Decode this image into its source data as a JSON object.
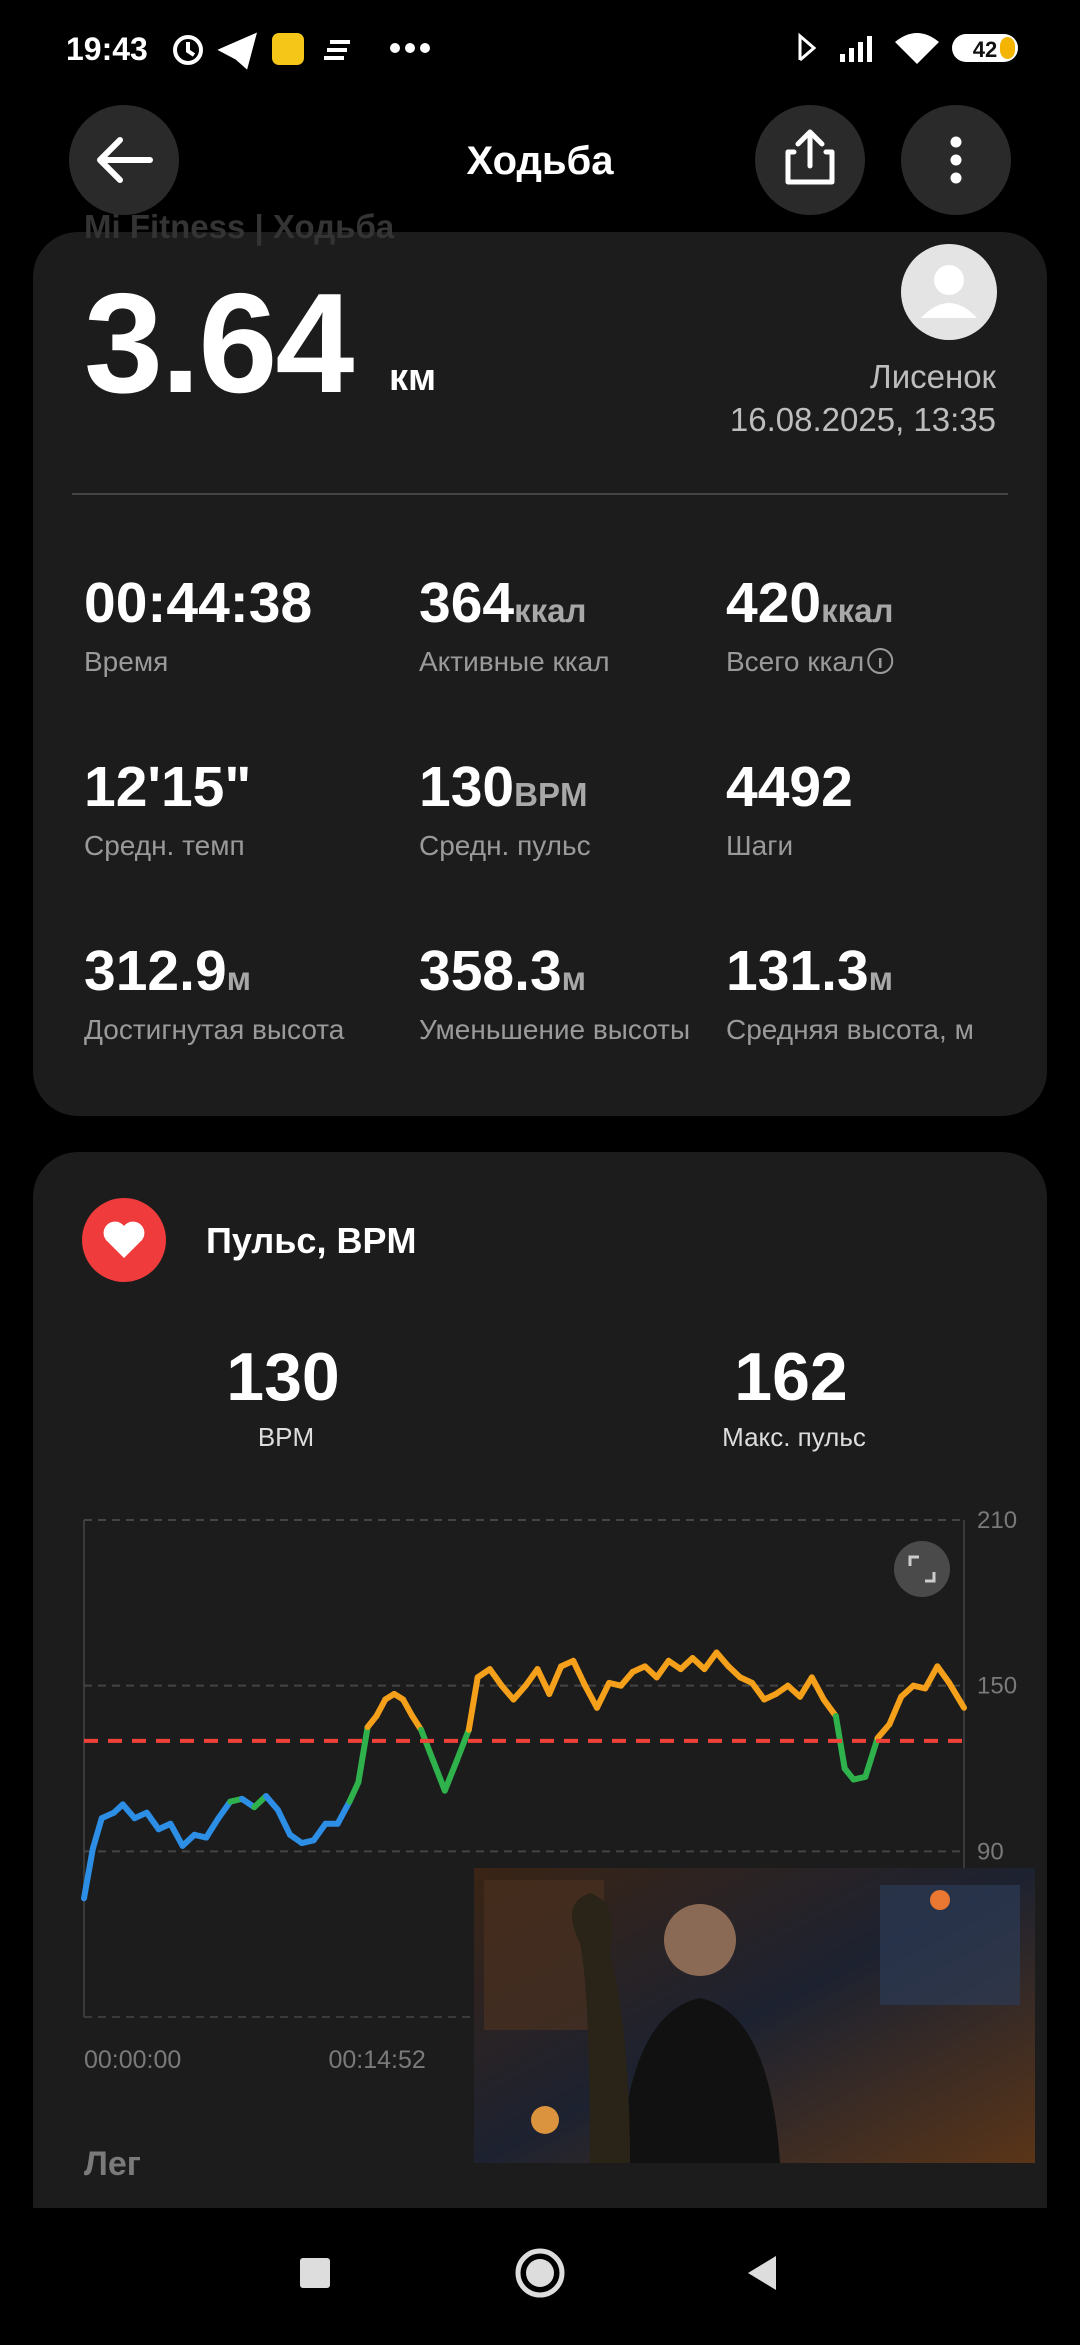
{
  "status_bar": {
    "time": "19:43",
    "battery": "42"
  },
  "header": {
    "title": "Ходьба",
    "background_text": "Mi Fitness | Ходьба"
  },
  "summary": {
    "distance": "3.64",
    "unit": "км",
    "user": "Лисенок",
    "date": "16.08.2025, 13:35"
  },
  "stats": [
    {
      "value": "00:44:38",
      "label": "Время"
    },
    {
      "value": "364",
      "unit": "ккал",
      "label": "Активные ккал"
    },
    {
      "value": "420",
      "unit": "ккал",
      "label": "Всего ккал"
    },
    {
      "value": "12'15\"",
      "label": "Средн. темп"
    },
    {
      "value": "130",
      "unit": "BPM",
      "label": "Средн. пульс"
    },
    {
      "value": "4492",
      "label": "Шаги"
    },
    {
      "value": "312.9",
      "unit": "м",
      "label": "Достигнутая высота"
    },
    {
      "value": "358.3",
      "unit": "м",
      "label": "Уменьшение высоты"
    },
    {
      "value": "131.3",
      "unit": "м",
      "label": "Средняя высота, м"
    }
  ],
  "heart_rate": {
    "title": "Пульс, BPM",
    "average": "130",
    "average_label": "BPM",
    "max": "162",
    "max_label": "Макс. пульс",
    "legend_title": "Лег"
  },
  "chart_data": {
    "type": "line",
    "x": [
      0,
      27,
      54,
      91,
      118,
      154,
      191,
      227,
      263,
      300,
      336,
      372,
      409,
      445,
      481,
      518,
      554,
      590,
      627,
      663,
      699,
      735,
      772,
      808,
      835,
      863,
      890,
      917,
      944,
      971,
      999,
      1026,
      1062,
      1098,
      1135,
      1171,
      1198,
      1235,
      1271,
      1307,
      1344,
      1380,
      1416,
      1452,
      1489,
      1525,
      1561,
      1598,
      1634,
      1670,
      1707,
      1743,
      1779,
      1816,
      1852,
      1888,
      1925,
      1961,
      1997,
      2033,
      2070,
      2106,
      2142,
      2179,
      2215,
      2251,
      2288,
      2315,
      2342,
      2378,
      2415,
      2451,
      2487,
      2524,
      2560,
      2597,
      2633,
      2678
    ],
    "values": [
      73,
      91,
      102,
      104,
      107,
      102,
      104,
      98,
      100,
      92,
      96,
      95,
      102,
      108,
      109,
      106,
      110,
      105,
      96,
      93,
      94,
      100,
      100,
      108,
      115,
      135,
      139,
      145,
      147,
      145,
      139,
      134,
      123,
      112,
      123,
      134,
      153,
      156,
      150,
      145,
      150,
      156,
      147,
      157,
      159,
      150,
      142,
      151,
      150,
      155,
      157,
      153,
      159,
      156,
      160,
      156,
      162,
      157,
      153,
      151,
      145,
      147,
      150,
      146,
      153,
      145,
      139,
      120,
      116,
      117,
      131,
      136,
      146,
      150,
      149,
      157,
      151,
      142
    ],
    "color": "#2d8ee6",
    "zones": [
      {
        "from": 108,
        "color": "#2fb24c"
      },
      {
        "from": 133,
        "color": "#f5a01a"
      }
    ],
    "reference_line": {
      "value": 130,
      "color": "#f0413a"
    },
    "xlim": [
      0,
      2678
    ],
    "xticks": [
      {
        "value": 0,
        "label": "00:00:00"
      },
      {
        "value": 892,
        "label": "00:14:52"
      }
    ],
    "ylim": [
      30,
      210
    ],
    "yticks": [
      90,
      150,
      210
    ],
    "grid": true
  }
}
